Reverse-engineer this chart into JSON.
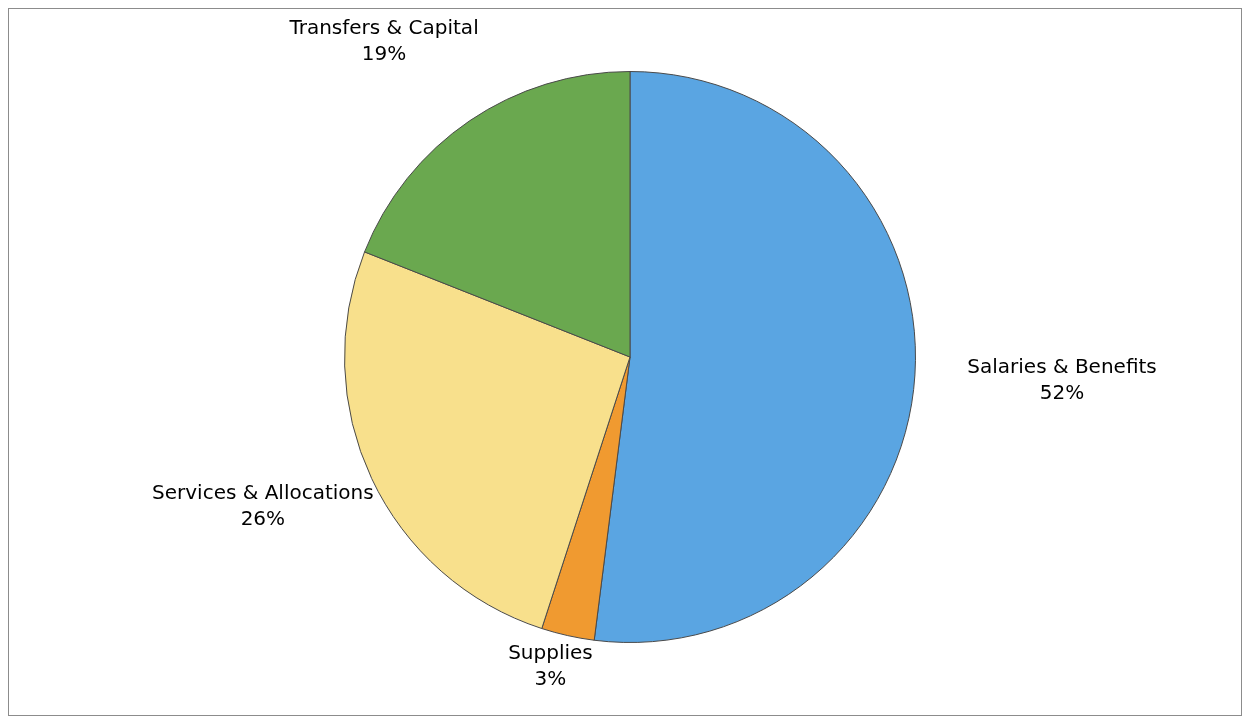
{
  "chart_data": {
    "type": "pie",
    "categories": [
      "Salaries & Benefits",
      "Supplies",
      "Services & Allocations",
      "Transfers & Capital"
    ],
    "values": [
      52,
      3,
      26,
      19
    ],
    "value_labels": [
      "52%",
      "3%",
      "26%",
      "19%"
    ],
    "colors": [
      "#5aa5e2",
      "#f09a30",
      "#f8e08c",
      "#6aa84f"
    ],
    "legend": false
  }
}
